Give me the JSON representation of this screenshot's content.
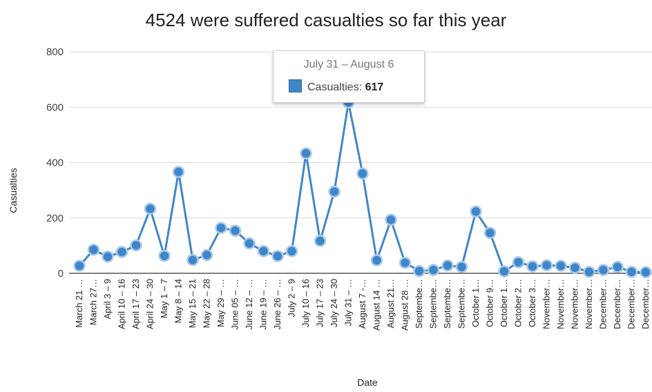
{
  "chart_data": {
    "type": "line",
    "title": "4524 were suffered casualties so far this year",
    "xlabel": "Date",
    "ylabel": "Casualties",
    "ylim": [
      0,
      800
    ],
    "yticks": [
      0,
      200,
      400,
      600,
      800
    ],
    "grid": true,
    "line_color": "#3f86c9",
    "categories": [
      "March 21 …",
      "March 27…",
      "April 3 – 9",
      "April 10 – 16",
      "April 17 – 23",
      "April 24 – 30",
      "May 1 – 7",
      "May 8 – 14",
      "May 15 – 21",
      "May 22 – 28",
      "May 29 – …",
      "June 05 – …",
      "June 12 – …",
      "June 19 – …",
      "June 26 – …",
      "July 2 – 9",
      "July 10 – 16",
      "July 17 – 23",
      "July 24 – 30",
      "July 31 – …",
      "August 7 -…",
      "August 14 …",
      "August 21…",
      "August 28 …",
      "Septembe…",
      "Septembe…",
      "Septembe…",
      "Septembe…",
      "October 1…",
      "October 9…",
      "October 1…",
      "October 2…",
      "October 3…",
      "November…",
      "November…",
      "November…",
      "November…",
      "December…",
      "December…",
      "December…",
      "December…"
    ],
    "series": [
      {
        "name": "Casualties",
        "values": [
          27,
          85,
          60,
          77,
          101,
          233,
          63,
          366,
          48,
          66,
          164,
          154,
          108,
          80,
          62,
          80,
          433,
          117,
          295,
          617,
          360,
          47,
          193,
          38,
          8,
          12,
          28,
          23,
          223,
          146,
          7,
          40,
          25,
          29,
          27,
          20,
          5,
          12,
          23,
          5,
          4
        ]
      }
    ],
    "tooltip": {
      "title": "July 31 – August 6",
      "label": "Casualties:",
      "value": "617"
    }
  }
}
